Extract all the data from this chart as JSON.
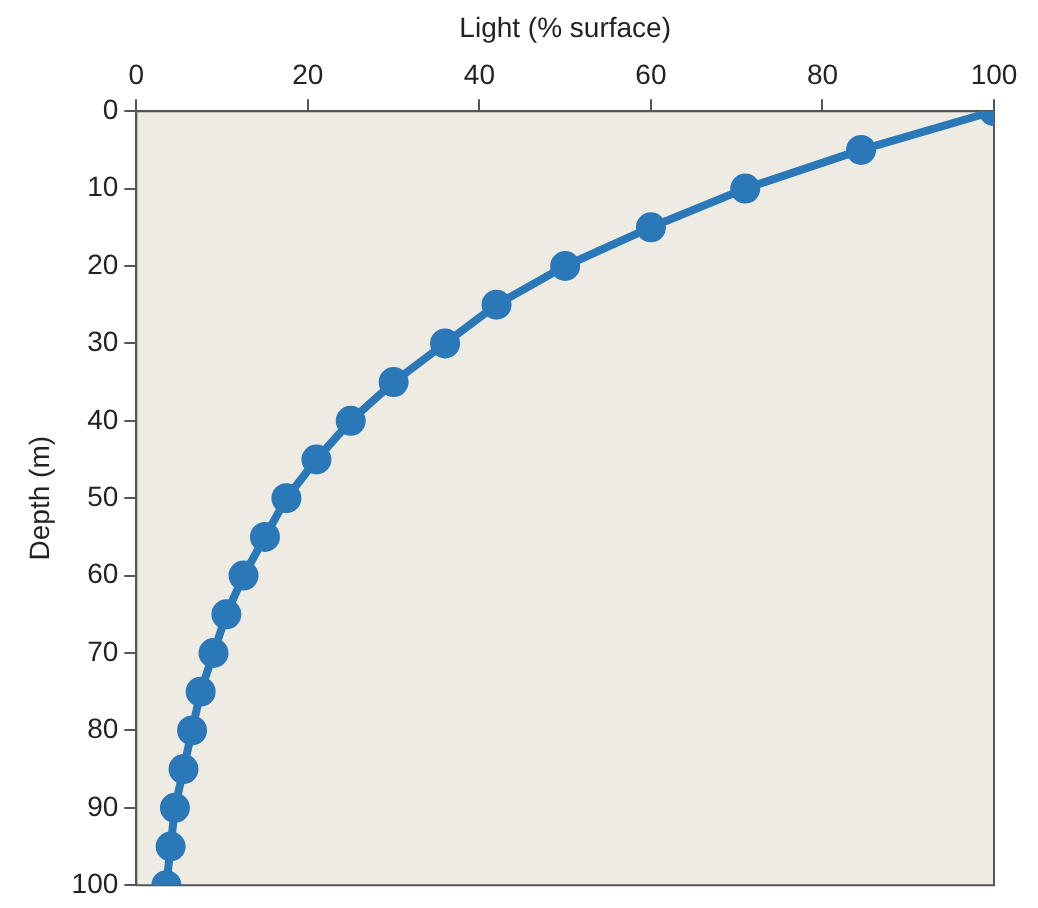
{
  "chart_data": {
    "type": "line",
    "xlabel": "Light (% surface)",
    "ylabel": "Depth (m)",
    "x": [
      100,
      84.5,
      71,
      60,
      50,
      42,
      36,
      30,
      25,
      21,
      17.5,
      15,
      12.5,
      10.5,
      9,
      7.5,
      6.5,
      5.5,
      4.5,
      4,
      3.5
    ],
    "series": [
      {
        "color": "#2a78b8",
        "values": [
          0,
          5,
          10,
          15,
          20,
          25,
          30,
          35,
          40,
          45,
          50,
          55,
          60,
          65,
          70,
          75,
          80,
          85,
          90,
          95,
          100
        ]
      }
    ],
    "xlim": [
      0,
      100
    ],
    "xticks": [
      0,
      20,
      40,
      60,
      80,
      100
    ],
    "ylim": [
      100,
      0
    ],
    "yticks": [
      0,
      10,
      20,
      30,
      40,
      50,
      60,
      70,
      80,
      90,
      100
    ],
    "marker": "circle",
    "line_style": "solid",
    "grid": false,
    "legend": false
  }
}
